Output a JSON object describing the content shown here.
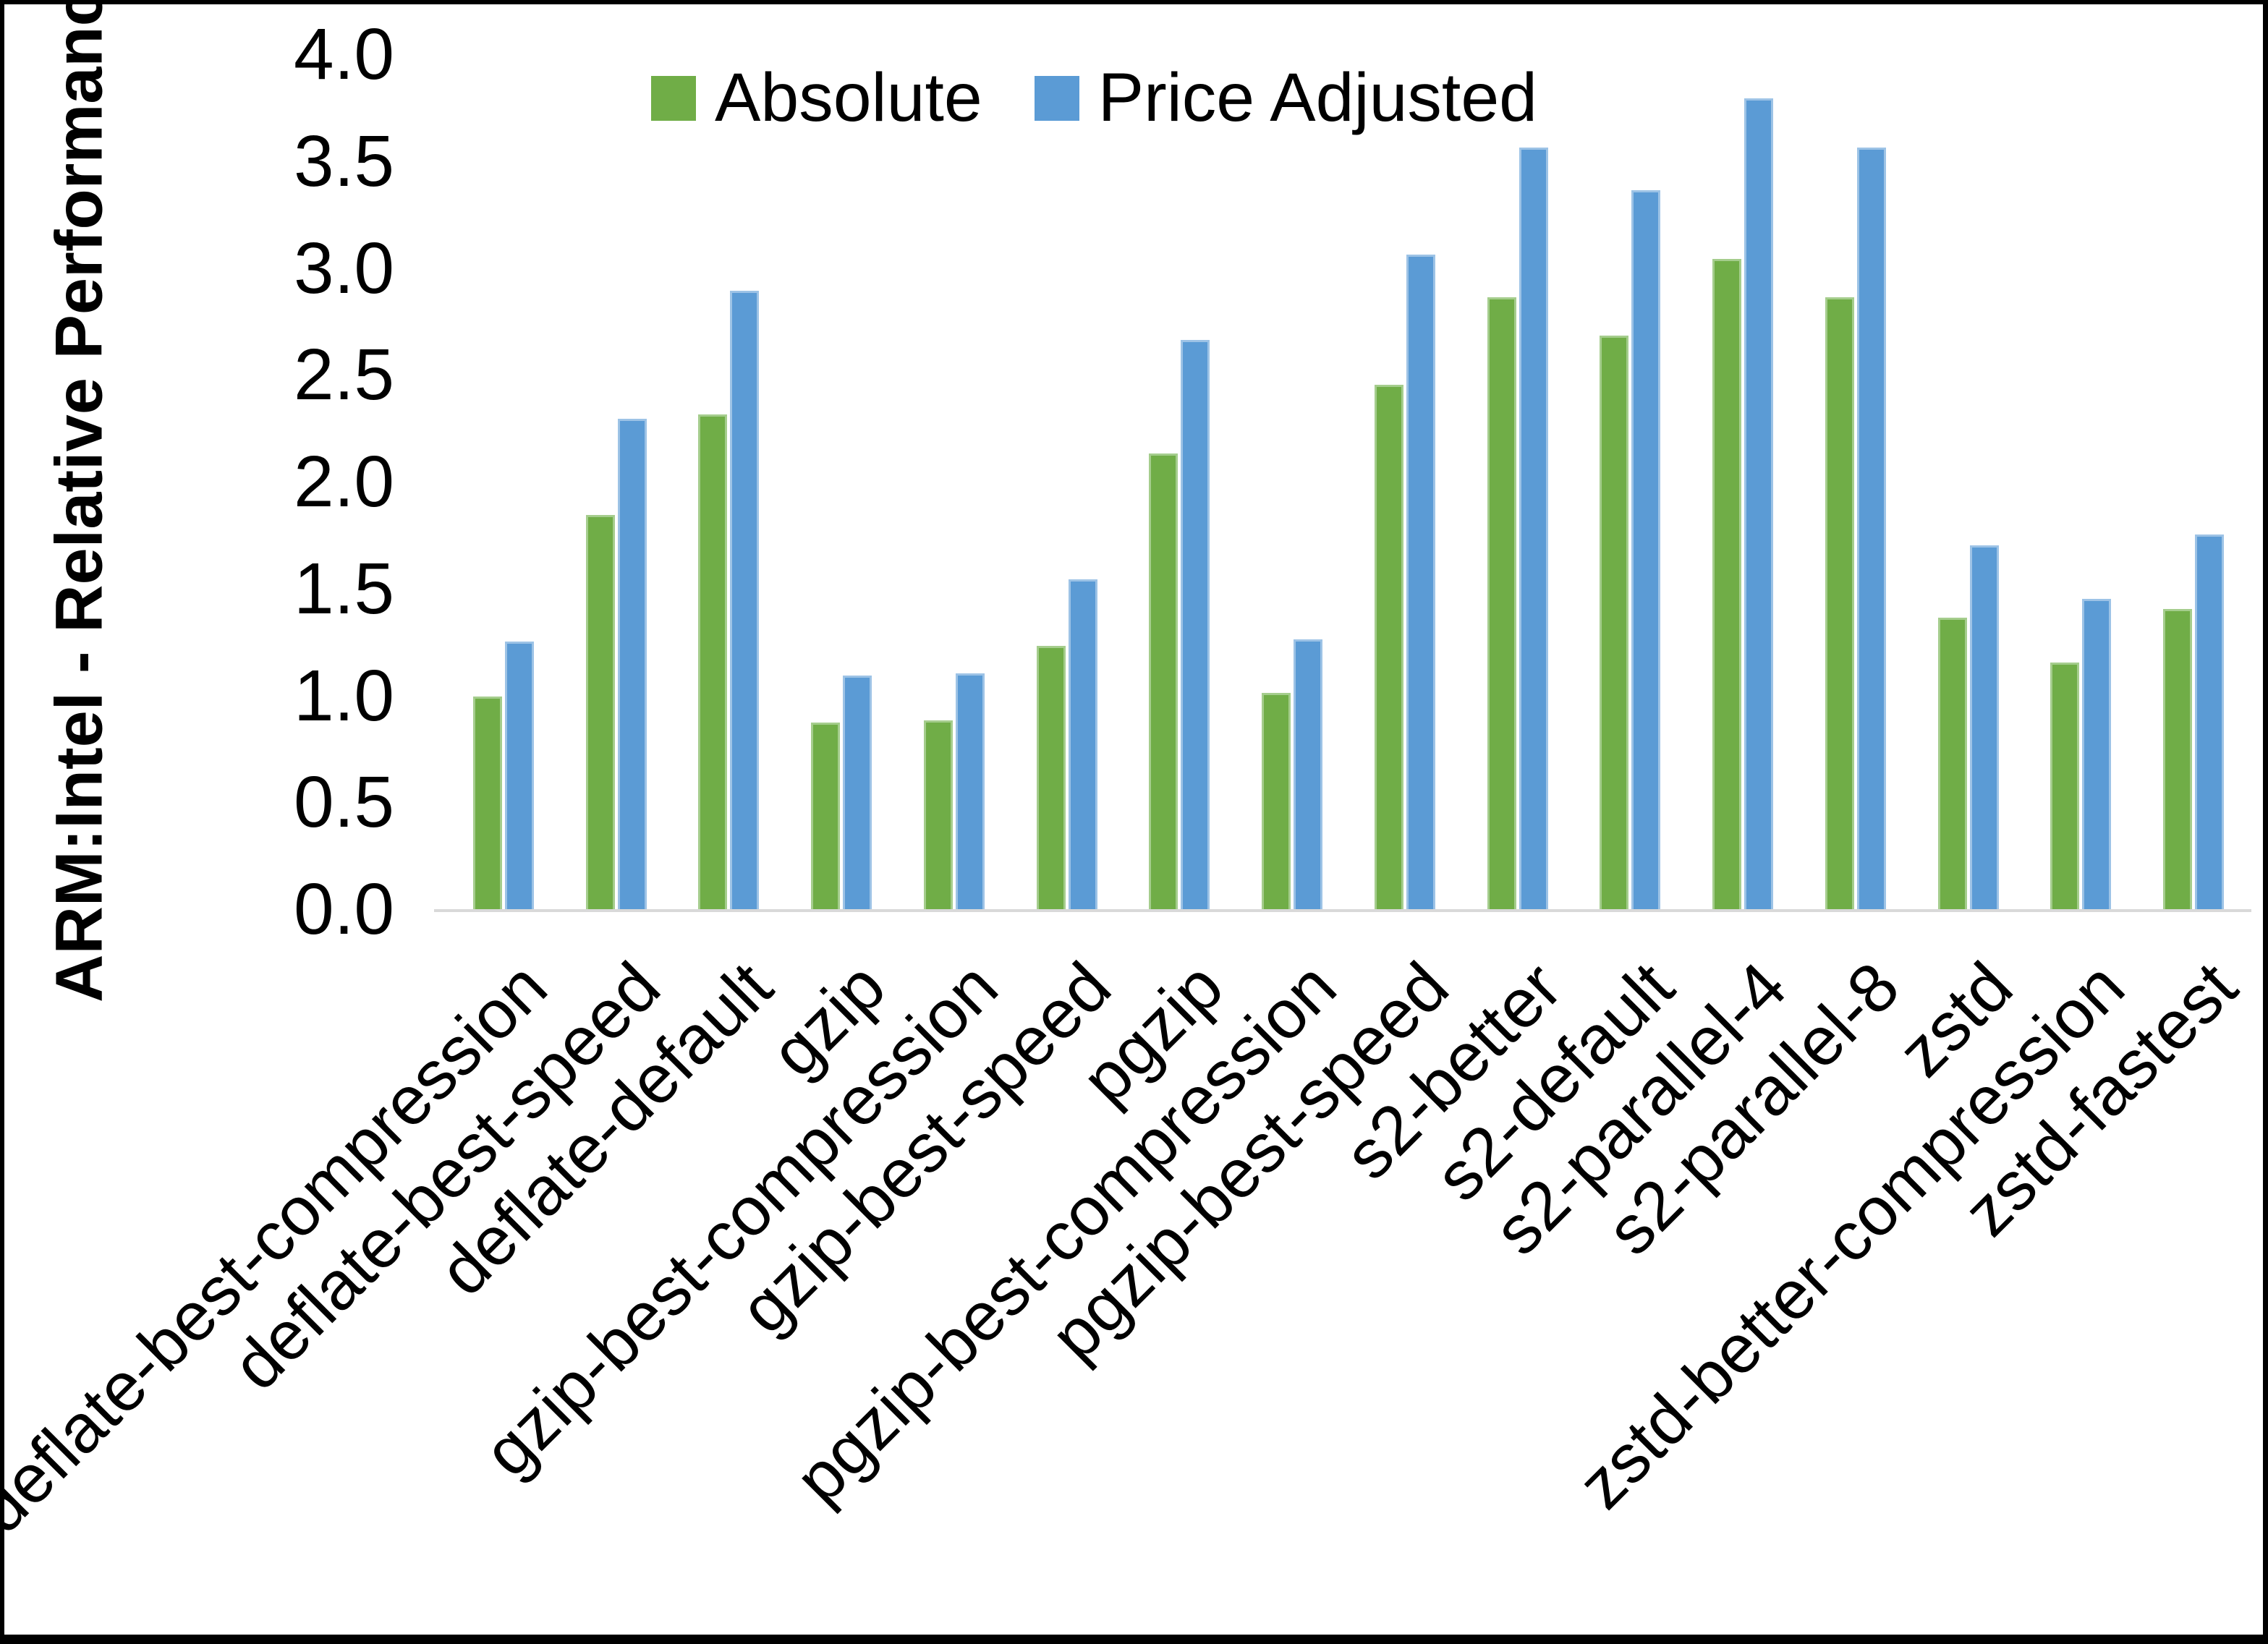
{
  "window": {
    "background": "#FFFFFF",
    "frame_color": "#000000"
  },
  "y_axis": {
    "title": "ARM:Intel - Relative Performance",
    "tick_labels": [
      "0.0",
      "0.5",
      "1.0",
      "1.5",
      "2.0",
      "2.5",
      "3.0",
      "3.5",
      "4.0"
    ]
  },
  "legend": {
    "items": [
      {
        "label": "Absolute",
        "color": "#70AD47"
      },
      {
        "label": "Price Adjusted",
        "color": "#5B9BD5"
      }
    ]
  },
  "chart_data": {
    "type": "bar",
    "title": "",
    "ylabel": "ARM:Intel - Relative Performance",
    "xlabel": "",
    "ylim": [
      0.0,
      4.0
    ],
    "ytick_step": 0.5,
    "grid": false,
    "legend_position": "top-center",
    "baseline_color": "#D9D9D9",
    "categories": [
      "deflate-best-compression",
      "deflate-best-speed",
      "deflate-default",
      "gzip",
      "gzip-best-compression",
      "gzip-best-speed",
      "pgzip",
      "pgzip-best-compression",
      "pgzip-best-speed",
      "s2-better",
      "s2-default",
      "s2-parallel-4",
      "s2-parallel-8",
      "zstd",
      "zstd-better-compression",
      "zstd-fastest"
    ],
    "series": [
      {
        "name": "Absolute",
        "color": "#70AD47",
        "edge_color": "#A5CD8D",
        "values": [
          1.0,
          1.85,
          2.32,
          0.88,
          0.89,
          1.24,
          2.14,
          1.02,
          2.46,
          2.87,
          2.69,
          3.05,
          2.87,
          1.37,
          1.16,
          1.41
        ]
      },
      {
        "name": "Price Adjusted",
        "color": "#5B9BD5",
        "edge_color": "#9DC3E6",
        "values": [
          1.26,
          2.3,
          2.9,
          1.1,
          1.11,
          1.55,
          2.67,
          1.27,
          3.07,
          3.57,
          3.37,
          3.8,
          3.57,
          1.71,
          1.46,
          1.76
        ]
      }
    ]
  }
}
